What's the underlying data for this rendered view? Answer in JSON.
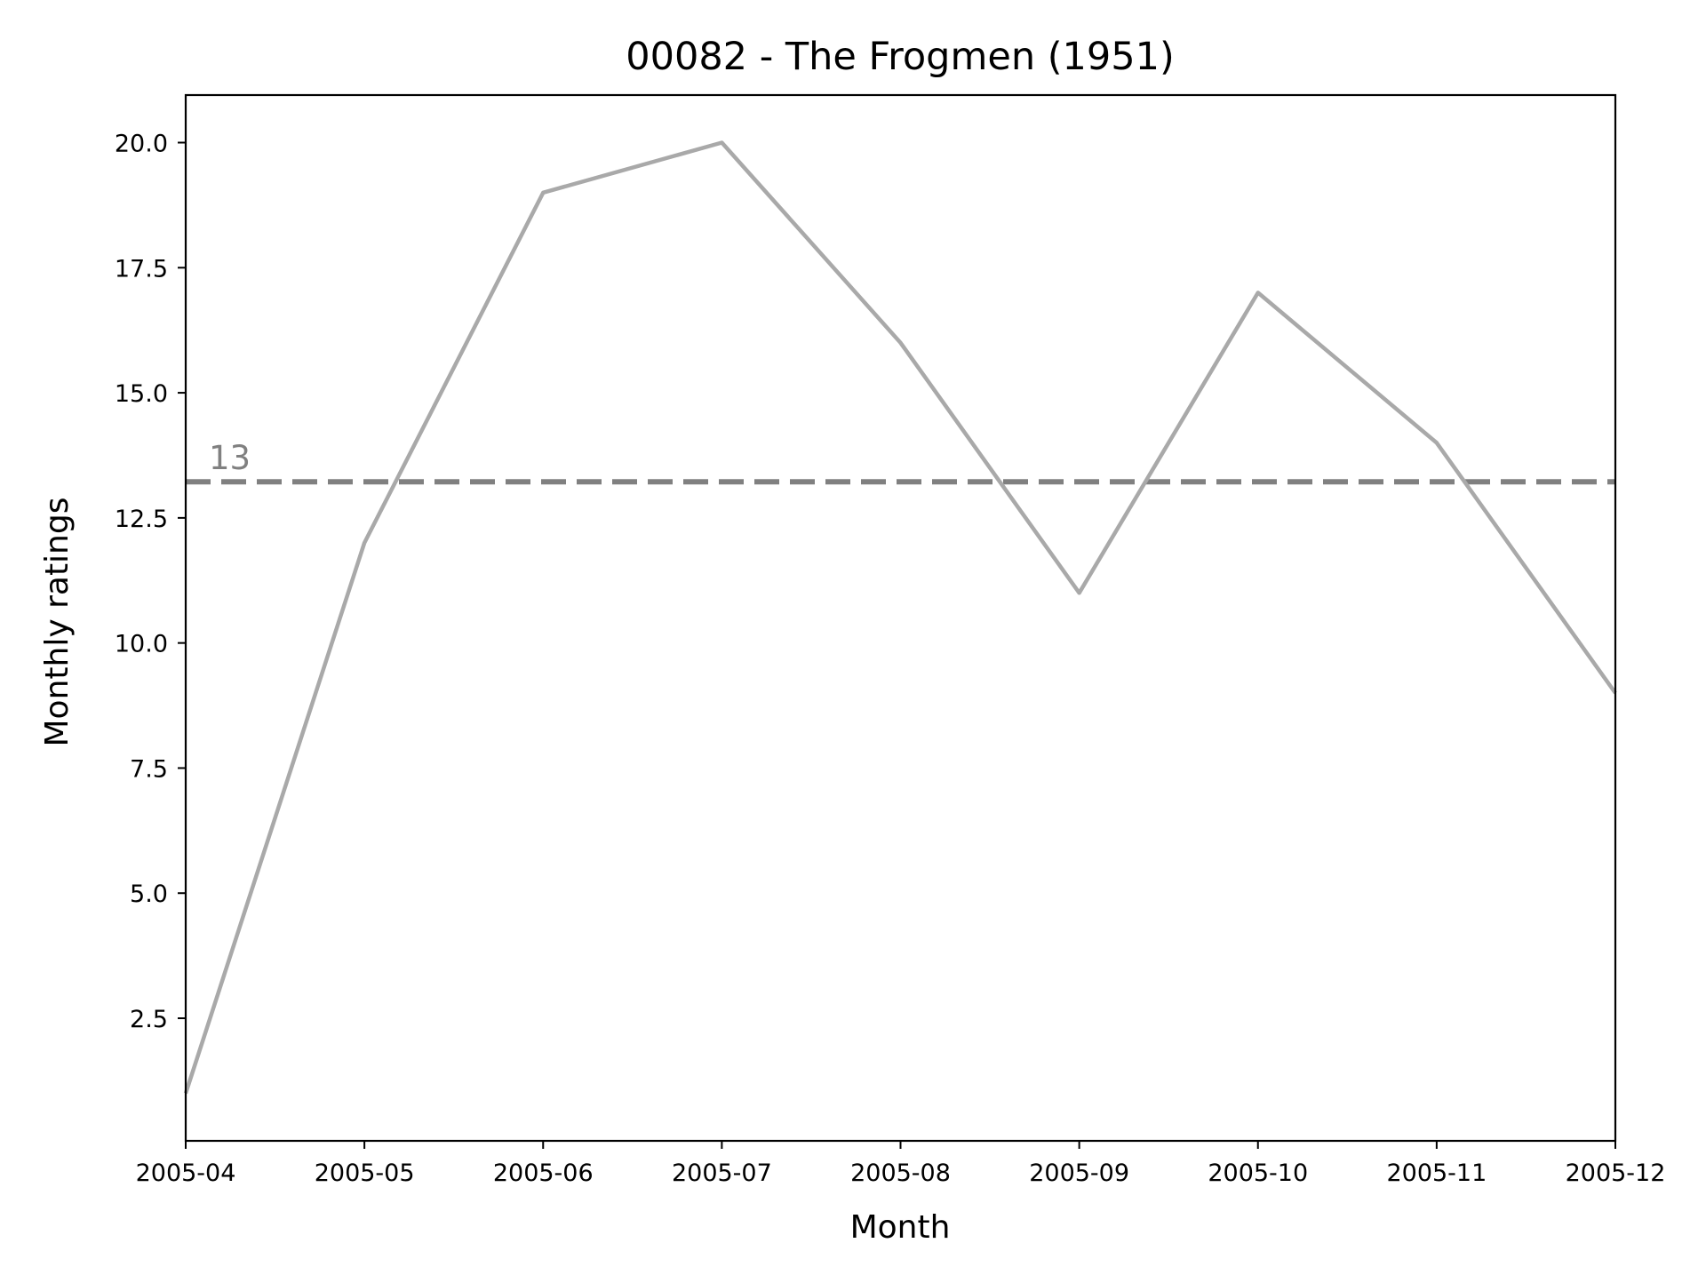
{
  "chart_data": {
    "type": "line",
    "title": "00082 - The Frogmen (1951)",
    "xlabel": "Month",
    "ylabel": "Monthly ratings",
    "x": [
      "2005-04",
      "2005-05",
      "2005-06",
      "2005-07",
      "2005-08",
      "2005-09",
      "2005-10",
      "2005-11",
      "2005-12"
    ],
    "series": [
      {
        "values": [
          1,
          12,
          19,
          20,
          16,
          11,
          17,
          14,
          9
        ],
        "color": "#a9a9a9"
      }
    ],
    "reference_line": {
      "value": 13.222,
      "label": "13",
      "color": "#808080",
      "style": "dashed"
    },
    "ylim": [
      0.05,
      20.95
    ],
    "yticks": [
      "2.5",
      "5.0",
      "7.5",
      "10.0",
      "12.5",
      "15.0",
      "17.5",
      "20.0"
    ],
    "grid": false,
    "legend": "none"
  }
}
